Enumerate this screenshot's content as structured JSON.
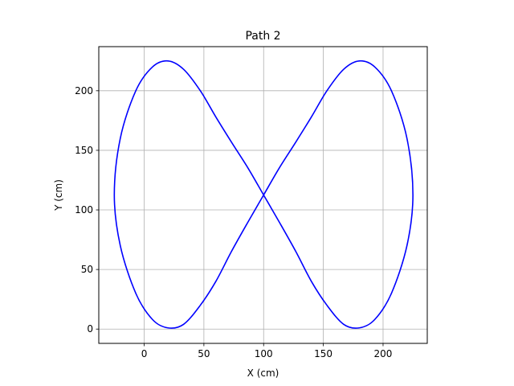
{
  "chart_data": {
    "type": "line",
    "title": "Path 2",
    "xlabel": "X (cm)",
    "ylabel": "Y (cm)",
    "xlim": [
      -38,
      237
    ],
    "ylim": [
      -12,
      237
    ],
    "xticks": [
      0,
      50,
      100,
      150,
      200
    ],
    "yticks": [
      0,
      50,
      100,
      150,
      200
    ],
    "grid": true,
    "series": [
      {
        "color": "#0000ff",
        "x": [
          100,
          113,
          127,
          140,
          153,
          167,
          180,
          193,
          207,
          220,
          225,
          220,
          207,
          193,
          180,
          167,
          153,
          140,
          127,
          113,
          100,
          87,
          73,
          60,
          47,
          33,
          20,
          7,
          -7,
          -20,
          -25,
          -20,
          -7,
          7,
          20,
          33,
          47,
          60,
          73,
          87,
          100
        ],
        "y": [
          112.5,
          135,
          157,
          178,
          200,
          218,
          225,
          220,
          200,
          160,
          112.5,
          70,
          30,
          8,
          1,
          4,
          20,
          40,
          65,
          90,
          112.5,
          135,
          157,
          178,
          200,
          218,
          225,
          220,
          200,
          160,
          112.5,
          70,
          30,
          8,
          1,
          4,
          20,
          40,
          65,
          90,
          112.5
        ]
      }
    ]
  }
}
